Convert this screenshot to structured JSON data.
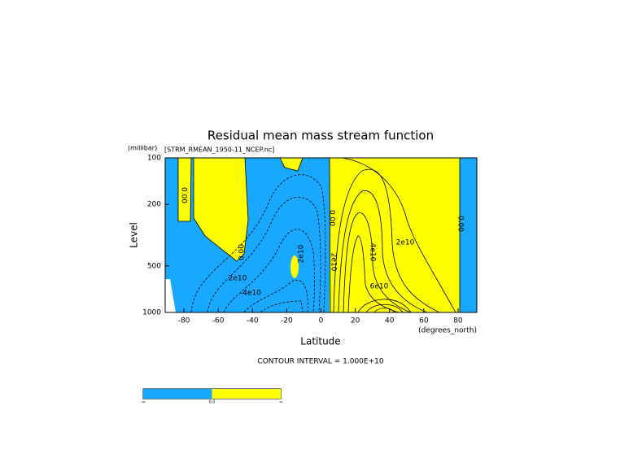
{
  "chart_data": {
    "type": "contour",
    "title": "Residual mean mass stream function",
    "subtitle": "[STRM_RMEAN_1950-11_NCEP.nc]",
    "xlabel": "Latitude",
    "xunits": "(degrees_north)",
    "ylabel": "Level",
    "yunits": "(millibar)",
    "note": "CONTOUR INTERVAL = 1.000E+10",
    "xlim": [
      -90,
      90
    ],
    "xticks": [
      -80,
      -60,
      -40,
      -20,
      0,
      20,
      40,
      60,
      80
    ],
    "ylim": [
      100,
      1000
    ],
    "yticks": [
      100,
      200,
      500,
      1000
    ],
    "ylog": true,
    "yreverse": true,
    "fill_colors": [
      "#18a8ff",
      "#ffff00"
    ],
    "contour_labels": [
      "0.00",
      "0.00",
      "2e10",
      "2e10",
      "-4e10",
      "0.00",
      "2e10",
      "4e10",
      "2e10",
      "6e10",
      "0.00"
    ],
    "colorbar_labels": [
      "-∞",
      "0.0",
      "∞"
    ]
  }
}
